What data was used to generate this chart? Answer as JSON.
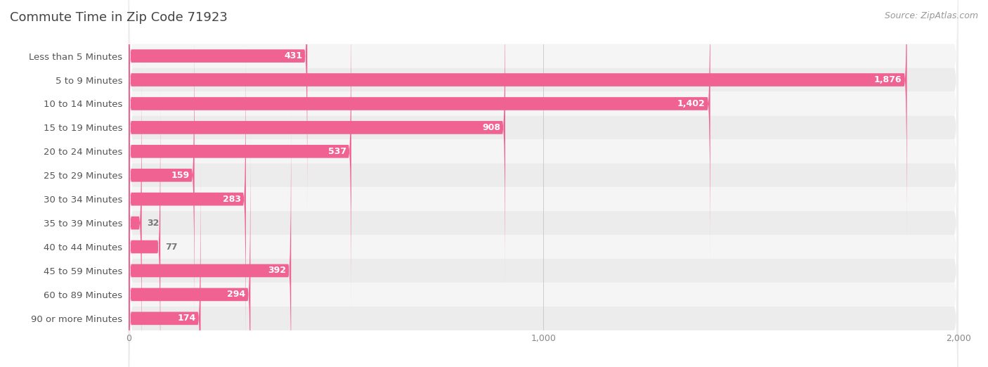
{
  "title": "Commute Time in Zip Code 71923",
  "source": "Source: ZipAtlas.com",
  "categories": [
    "Less than 5 Minutes",
    "5 to 9 Minutes",
    "10 to 14 Minutes",
    "15 to 19 Minutes",
    "20 to 24 Minutes",
    "25 to 29 Minutes",
    "30 to 34 Minutes",
    "35 to 39 Minutes",
    "40 to 44 Minutes",
    "45 to 59 Minutes",
    "60 to 89 Minutes",
    "90 or more Minutes"
  ],
  "values": [
    431,
    1876,
    1402,
    908,
    537,
    159,
    283,
    32,
    77,
    392,
    294,
    174
  ],
  "bar_color_main": "#f06292",
  "row_bg_colors": [
    "#f5f5f5",
    "#ececec"
  ],
  "title_color": "#444444",
  "label_color": "#555555",
  "value_color_inside": "#ffffff",
  "value_color_outside": "#777777",
  "source_color": "#999999",
  "xlim": [
    0,
    2000
  ],
  "xticks": [
    0,
    1000,
    2000
  ],
  "title_fontsize": 13,
  "label_fontsize": 9.5,
  "value_fontsize": 9,
  "source_fontsize": 9,
  "background_color": "#ffffff",
  "inside_threshold": 120
}
